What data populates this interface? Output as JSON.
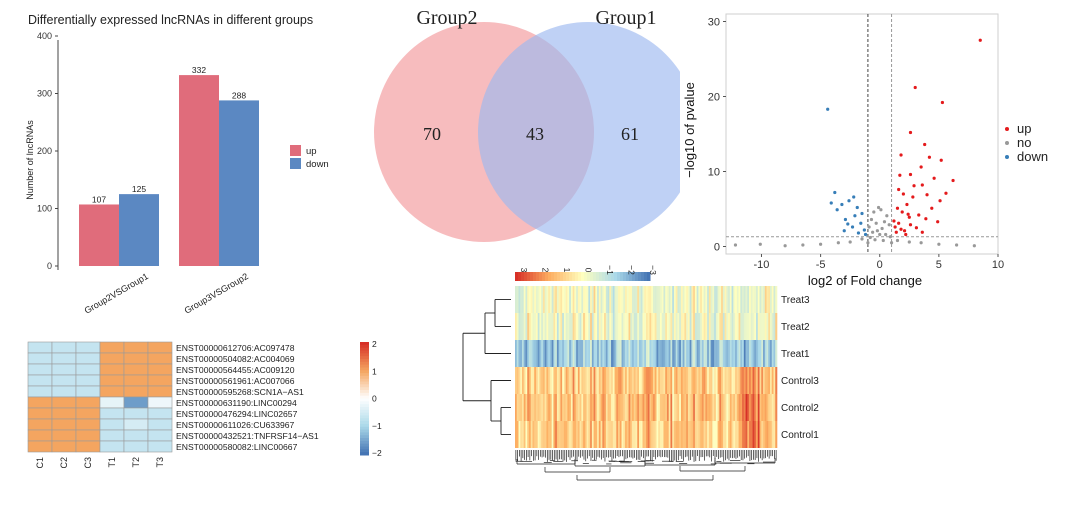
{
  "colors": {
    "up": "#e06c7b",
    "down": "#5b88c2",
    "venn_left": "#f4a6a8",
    "venn_right": "#9db8f0",
    "volcano_up": "#e41a1c",
    "volcano_no": "#999999",
    "volcano_down": "#377eb8"
  },
  "chart_data": [
    {
      "type": "bar",
      "title": "Differentially expressed lncRNAs in different groups",
      "xlabel": "",
      "ylabel": "Number of lncRNAs",
      "categories": [
        "Group2VSGroup1",
        "Group3VSGroup2"
      ],
      "series": [
        {
          "name": "up",
          "values": [
            107,
            332
          ]
        },
        {
          "name": "down",
          "values": [
            125,
            288
          ]
        }
      ],
      "ylim": [
        0,
        400
      ],
      "yticks": [
        0,
        100,
        200,
        300,
        400
      ],
      "legend": "right"
    },
    {
      "type": "venn",
      "sets": [
        {
          "name": "Group2",
          "only": 70
        },
        {
          "name": "Group1",
          "only": 61
        }
      ],
      "intersection": 43
    },
    {
      "type": "scatter",
      "xlabel": "log2 of Fold change",
      "ylabel": "−log10 of pvalue",
      "xlim": [
        -13,
        10
      ],
      "ylim": [
        -1,
        31
      ],
      "xticks": [
        -10,
        -5,
        0,
        5,
        10
      ],
      "yticks": [
        0,
        10,
        20,
        30
      ],
      "thresholds": {
        "x": [
          -1,
          1
        ],
        "y": 1.3
      },
      "legend_entries": [
        "up",
        "no",
        "down"
      ],
      "legend": "right",
      "series": [
        {
          "name": "up",
          "points": [
            [
              8.5,
              27.5
            ],
            [
              3,
              21.2
            ],
            [
              5.3,
              19.2
            ],
            [
              2.6,
              15.2
            ],
            [
              3.8,
              13.6
            ],
            [
              4.2,
              11.9
            ],
            [
              5.2,
              11.5
            ],
            [
              6.2,
              8.8
            ],
            [
              1.8,
              12.2
            ],
            [
              1.6,
              7.6
            ],
            [
              2.6,
              9.6
            ],
            [
              3.6,
              8.2
            ],
            [
              4.6,
              9.1
            ],
            [
              5.6,
              7.1
            ],
            [
              1.5,
              5.1
            ],
            [
              1.9,
              4.6
            ],
            [
              2.3,
              5.6
            ],
            [
              2.8,
              6.6
            ],
            [
              3.3,
              4.2
            ],
            [
              3.9,
              3.7
            ],
            [
              4.4,
              5.1
            ],
            [
              1.3,
              2.6
            ],
            [
              1.6,
              3.1
            ],
            [
              2.1,
              2.1
            ],
            [
              2.6,
              2.9
            ],
            [
              3.1,
              2.5
            ],
            [
              3.6,
              1.9
            ],
            [
              1.4,
              1.9
            ],
            [
              1.8,
              2.3
            ],
            [
              2.2,
              1.6
            ],
            [
              2.5,
              3.9
            ],
            [
              1.2,
              3.4
            ],
            [
              4.9,
              3.3
            ],
            [
              5.1,
              6.1
            ],
            [
              3.5,
              10.6
            ],
            [
              2.9,
              8.1
            ],
            [
              2.0,
              7.0
            ],
            [
              1.7,
              9.5
            ],
            [
              4.0,
              6.9
            ],
            [
              2.4,
              4.3
            ]
          ]
        },
        {
          "name": "down",
          "points": [
            [
              -4.4,
              18.3
            ],
            [
              -3.8,
              7.2
            ],
            [
              -3.2,
              5.6
            ],
            [
              -2.6,
              6.1
            ],
            [
              -2.1,
              4.1
            ],
            [
              -1.6,
              3.1
            ],
            [
              -1.3,
              2.2
            ],
            [
              -2.9,
              3.6
            ],
            [
              -3.6,
              4.9
            ],
            [
              -1.9,
              5.2
            ],
            [
              -2.3,
              2.6
            ],
            [
              -1.5,
              4.4
            ],
            [
              -4.1,
              5.8
            ],
            [
              -2.7,
              3.0
            ],
            [
              -1.8,
              1.8
            ],
            [
              -1.2,
              1.6
            ],
            [
              -3.0,
              2.1
            ],
            [
              -2.2,
              6.6
            ]
          ]
        },
        {
          "name": "no",
          "points": [
            [
              -12.2,
              0.2
            ],
            [
              -10.1,
              0.3
            ],
            [
              -8.0,
              0.1
            ],
            [
              -6.5,
              0.2
            ],
            [
              -5.0,
              0.3
            ],
            [
              -3.5,
              0.5
            ],
            [
              -2.5,
              0.6
            ],
            [
              -1.5,
              1.0
            ],
            [
              -0.9,
              2.6
            ],
            [
              -0.7,
              3.6
            ],
            [
              -0.5,
              4.6
            ],
            [
              -0.3,
              3.1
            ],
            [
              -0.2,
              2.1
            ],
            [
              0.0,
              1.6
            ],
            [
              0.2,
              2.4
            ],
            [
              0.4,
              3.3
            ],
            [
              0.6,
              4.1
            ],
            [
              0.8,
              2.9
            ],
            [
              -0.8,
              1.2
            ],
            [
              0.9,
              1.3
            ],
            [
              1.5,
              0.8
            ],
            [
              2.5,
              0.6
            ],
            [
              3.5,
              0.5
            ],
            [
              5.0,
              0.3
            ],
            [
              6.5,
              0.2
            ],
            [
              8.0,
              0.1
            ],
            [
              -0.6,
              1.9
            ],
            [
              0.5,
              1.6
            ],
            [
              -0.4,
              0.9
            ],
            [
              0.3,
              0.8
            ],
            [
              -1.0,
              0.5
            ],
            [
              1.0,
              0.5
            ],
            [
              -0.1,
              5.2
            ],
            [
              0.1,
              4.9
            ]
          ]
        }
      ]
    },
    {
      "type": "heatmap",
      "columns": [
        "C1",
        "C2",
        "C3",
        "T1",
        "T2",
        "T3"
      ],
      "rows": [
        {
          "label": "ENST00000612706:AC097478",
          "values": [
            -0.7,
            -0.7,
            -0.7,
            1.0,
            1.0,
            1.0
          ]
        },
        {
          "label": "ENST00000504082:AC004069",
          "values": [
            -0.7,
            -0.7,
            -0.7,
            1.0,
            1.0,
            1.0
          ]
        },
        {
          "label": "ENST00000564455:AC009120",
          "values": [
            -0.7,
            -0.7,
            -0.7,
            1.0,
            1.0,
            1.0
          ]
        },
        {
          "label": "ENST00000561961:AC007066",
          "values": [
            -0.7,
            -0.7,
            -0.7,
            1.0,
            1.0,
            1.0
          ]
        },
        {
          "label": "ENST00000595268:SCN1A−AS1",
          "values": [
            -0.7,
            -0.7,
            -0.7,
            1.0,
            1.0,
            1.0
          ]
        },
        {
          "label": "ENST00000631190:LINC00294",
          "values": [
            1.0,
            1.0,
            1.0,
            -0.3,
            -1.6,
            -0.2
          ]
        },
        {
          "label": "ENST00000476294:LINC02657",
          "values": [
            1.0,
            1.0,
            1.0,
            -0.7,
            -0.7,
            -0.7
          ]
        },
        {
          "label": "ENST00000611026:CU633967",
          "values": [
            1.0,
            1.0,
            1.0,
            -0.7,
            -0.5,
            -0.7
          ]
        },
        {
          "label": "ENST00000432521:TNFRSF14−AS1",
          "values": [
            1.0,
            1.0,
            1.0,
            -0.7,
            -0.7,
            -0.7
          ]
        },
        {
          "label": "ENST00000580082:LINC00667",
          "values": [
            1.0,
            1.0,
            1.0,
            -0.7,
            -0.7,
            -0.7
          ]
        }
      ],
      "scale_ticks": [
        "2",
        "1",
        "0",
        "−1",
        "−2"
      ],
      "range": [
        -2,
        2
      ]
    },
    {
      "type": "heatmap",
      "rows": [
        "Treat3",
        "Treat2",
        "Treat1",
        "Control3",
        "Control2",
        "Control1"
      ],
      "scale_ticks": [
        "3",
        "2",
        "1",
        "0",
        "−1",
        "−2",
        "−3"
      ],
      "range": [
        -3,
        3
      ],
      "row_bias": [
        -0.2,
        -0.1,
        -1.6,
        1.0,
        1.1,
        1.0
      ],
      "dendrogram": "rows-and-columns"
    }
  ]
}
